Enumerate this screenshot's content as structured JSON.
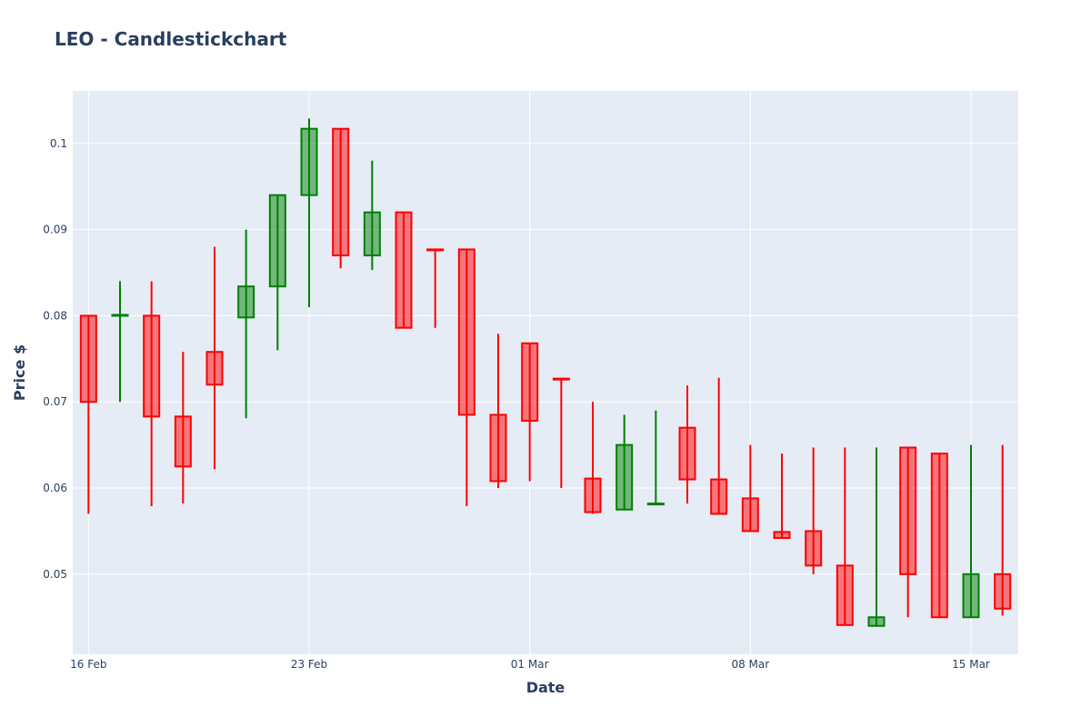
{
  "chart_data": {
    "type": "candlestick",
    "title": "LEO - Candlestickchart",
    "xlabel": "Date",
    "ylabel": "Price $",
    "ylim": [
      0.0407,
      0.1061
    ],
    "y_ticks": [
      "0.05",
      "0.06",
      "0.07",
      "0.08",
      "0.09",
      "0.1"
    ],
    "x_ticks": [
      "16 Feb",
      "23 Feb",
      "01 Mar",
      "08 Mar",
      "15 Mar"
    ],
    "grid": true,
    "background": "#e5ecf6",
    "increasing_color": "#008000",
    "decreasing_color": "#ff0000",
    "dates": [
      "16 Feb",
      "17 Feb",
      "18 Feb",
      "19 Feb",
      "20 Feb",
      "21 Feb",
      "22 Feb",
      "23 Feb",
      "24 Feb",
      "25 Feb",
      "26 Feb",
      "27 Feb",
      "28 Feb",
      "29 Feb",
      "01 Mar",
      "02 Mar",
      "03 Mar",
      "04 Mar",
      "05 Mar",
      "06 Mar",
      "07 Mar",
      "08 Mar",
      "09 Mar",
      "10 Mar",
      "11 Mar",
      "12 Mar",
      "13 Mar",
      "14 Mar",
      "15 Mar",
      "16 Mar"
    ],
    "open": [
      0.08,
      0.08,
      0.08,
      0.0683,
      0.0758,
      0.0798,
      0.0834,
      0.094,
      0.1017,
      0.087,
      0.092,
      0.0877,
      0.0877,
      0.0685,
      0.0768,
      0.0727,
      0.0611,
      0.0575,
      0.0581,
      0.067,
      0.061,
      0.0588,
      0.0549,
      0.055,
      0.051,
      0.044,
      0.0647,
      0.064,
      0.045,
      0.05
    ],
    "high": [
      0.08,
      0.084,
      0.084,
      0.0758,
      0.088,
      0.09,
      0.094,
      0.1029,
      0.1017,
      0.098,
      0.092,
      0.0877,
      0.0877,
      0.0779,
      0.0768,
      0.0727,
      0.07,
      0.0685,
      0.069,
      0.0719,
      0.0728,
      0.065,
      0.064,
      0.0647,
      0.0647,
      0.0647,
      0.0647,
      0.064,
      0.065,
      0.065
    ],
    "low": [
      0.057,
      0.07,
      0.0579,
      0.0582,
      0.0622,
      0.0681,
      0.076,
      0.081,
      0.0855,
      0.0853,
      0.0786,
      0.0786,
      0.0579,
      0.06,
      0.0608,
      0.06,
      0.057,
      0.0575,
      0.0581,
      0.0582,
      0.057,
      0.055,
      0.0542,
      0.05,
      0.0441,
      0.044,
      0.045,
      0.045,
      0.045,
      0.0452
    ],
    "close": [
      0.07,
      0.0801,
      0.0683,
      0.0625,
      0.072,
      0.0834,
      0.094,
      0.1017,
      0.087,
      0.092,
      0.0786,
      0.0876,
      0.0685,
      0.0608,
      0.0678,
      0.0726,
      0.0572,
      0.065,
      0.0582,
      0.061,
      0.057,
      0.055,
      0.0542,
      0.051,
      0.0441,
      0.045,
      0.05,
      0.045,
      0.05,
      0.046
    ]
  }
}
